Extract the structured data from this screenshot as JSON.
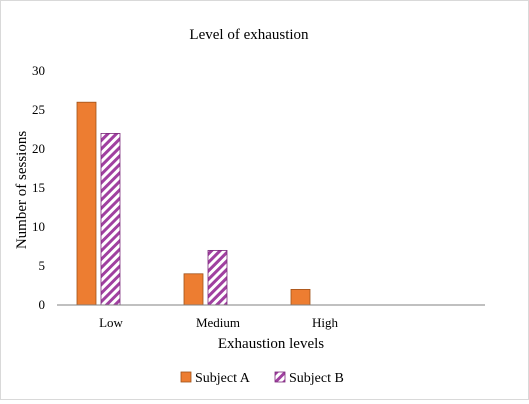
{
  "colors": {
    "subject_a": "#ED7D31",
    "subject_a_stroke": "#A0521A",
    "subject_b_stripe": "#A040A0",
    "subject_b_stroke": "#7A2A7A",
    "axis": "#808080"
  },
  "chart_data": {
    "type": "bar",
    "title": "Level of exhaustion",
    "xlabel": "Exhaustion levels",
    "ylabel": "Number of sessions",
    "categories": [
      "Low",
      "Medium",
      "High"
    ],
    "series": [
      {
        "name": "Subject A",
        "values": [
          26,
          4,
          2
        ],
        "fill": "solid"
      },
      {
        "name": "Subject B",
        "values": [
          22,
          7,
          0
        ],
        "fill": "diagonal-stripes"
      }
    ],
    "ylim": [
      0,
      30
    ],
    "yticks": [
      0,
      5,
      10,
      15,
      20,
      25,
      30
    ],
    "grid": false,
    "legend": "bottom"
  }
}
